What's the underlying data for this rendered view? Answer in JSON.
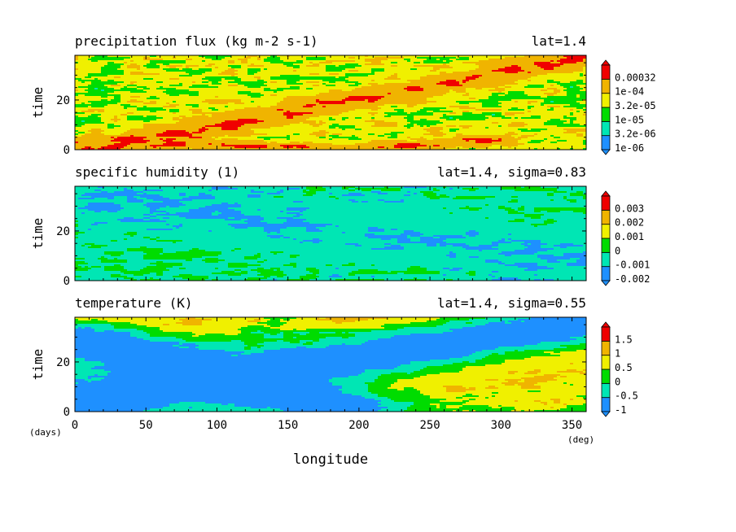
{
  "colors": {
    "blue": "#1e90ff",
    "cyan": "#00e6b4",
    "green": "#00dc00",
    "yellow": "#f0f000",
    "orange": "#f0b400",
    "red": "#f00000"
  },
  "chart_data": [
    {
      "type": "heatmap",
      "title": "precipitation flux (kg m-2 s-1)",
      "subtitle": "lat=1.4",
      "ylabel": "time",
      "xlim": [
        0,
        360
      ],
      "ylim": [
        0,
        38
      ],
      "yticks": [
        "0",
        "20"
      ],
      "colorbar_labels": [
        "1e-06",
        "3.2e-06",
        "1e-05",
        "3.2e-05",
        "1e-04",
        "0.00032"
      ],
      "colorbar_colors": [
        "#1e90ff",
        "#00e6b4",
        "#00dc00",
        "#f0f000",
        "#f0b400",
        "#f00000"
      ],
      "base_level": 3.3,
      "bands": [
        {
          "x0": 10,
          "t0": 0,
          "x1": 355,
          "t1": 37,
          "level": 5,
          "width": 2.5
        },
        {
          "x0": 200,
          "t0": 0,
          "x1": 290,
          "t1": 4,
          "level": 5,
          "width": 1.8
        },
        {
          "x0": 0,
          "t0": 3,
          "x1": 160,
          "t1": 1,
          "level": 5,
          "width": 1.6
        }
      ]
    },
    {
      "type": "heatmap",
      "title": "specific humidity (1)",
      "subtitle": "lat=1.4, sigma=0.83",
      "ylabel": "time",
      "xlim": [
        0,
        360
      ],
      "ylim": [
        0,
        38
      ],
      "yticks": [
        "0",
        "20"
      ],
      "colorbar_labels": [
        "-0.002",
        "-0.001",
        "0",
        "0.001",
        "0.002",
        "0.003"
      ],
      "colorbar_colors": [
        "#1e90ff",
        "#00e6b4",
        "#00dc00",
        "#f0f000",
        "#f0b400",
        "#f00000"
      ],
      "base_level": 1.6,
      "bands": [
        {
          "x0": 0,
          "t0": 4,
          "x1": 360,
          "t1": 30,
          "level": 2,
          "width": 7
        },
        {
          "x0": 0,
          "t0": 34,
          "x1": 360,
          "t1": 8,
          "level": 1,
          "width": 6
        }
      ]
    },
    {
      "type": "heatmap",
      "title": "temperature (K)",
      "subtitle": "lat=1.4, sigma=0.55",
      "ylabel": "time",
      "xlabel": "longitude",
      "x_unit": "(deg)",
      "y_unit": "(days)",
      "xlim": [
        0,
        360
      ],
      "ylim": [
        0,
        38
      ],
      "xticks": [
        "0",
        "50",
        "100",
        "150",
        "200",
        "250",
        "300",
        "350"
      ],
      "yticks": [
        "0",
        "20"
      ],
      "colorbar_labels": [
        "-1",
        "-0.5",
        "0",
        "0.5",
        "1",
        "1.5"
      ],
      "colorbar_colors": [
        "#1e90ff",
        "#00e6b4",
        "#00dc00",
        "#f0f000",
        "#f0b400",
        "#f00000"
      ],
      "base_level": 3.0,
      "bands": [
        {
          "x0": 170,
          "t0": 8,
          "x1": 360,
          "t1": 28,
          "level": 5,
          "width": 7
        },
        {
          "x0": 0,
          "t0": 36,
          "x1": 60,
          "t1": 34,
          "level": 5,
          "width": 4
        },
        {
          "x0": 200,
          "t0": 37,
          "x1": 290,
          "t1": 36,
          "level": 5,
          "width": 3
        },
        {
          "x0": 20,
          "t0": 5,
          "x1": 360,
          "t1": 36,
          "level": 0,
          "width": 6
        },
        {
          "x0": 0,
          "t0": 30,
          "x1": 180,
          "t1": 2,
          "level": 0,
          "width": 5
        }
      ]
    }
  ]
}
